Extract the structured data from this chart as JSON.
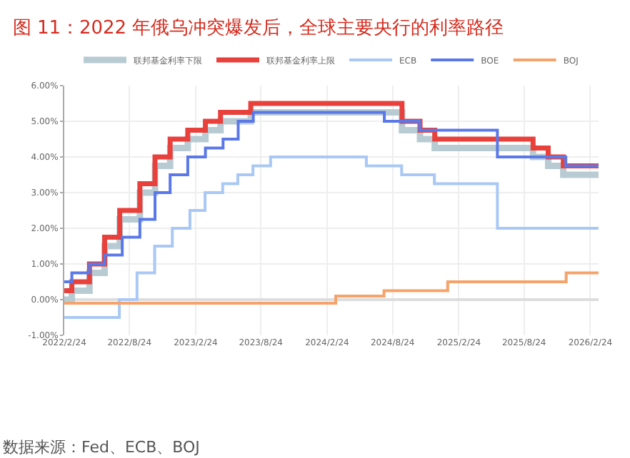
{
  "chart_data": {
    "type": "step",
    "title": "图 11：2022 年俄乌冲突爆发后，全球主要央行的利率路径",
    "series": [
      {
        "name": "联邦基金利率下限",
        "color": "#b8cbd3",
        "x": [
          "2022-02-24",
          "2022-03-17",
          "2022-05-05",
          "2022-06-16",
          "2022-07-28",
          "2022-09-22",
          "2022-11-03",
          "2022-12-15",
          "2023-02-02",
          "2023-03-23",
          "2023-05-04",
          "2023-07-27",
          "2024-09-19",
          "2024-11-08",
          "2024-12-19",
          "2025-09-18",
          "2025-10-30",
          "2025-12-11",
          "2026-03-19"
        ],
        "values": [
          0.0,
          0.25,
          0.75,
          1.5,
          2.25,
          3.0,
          3.75,
          4.25,
          4.5,
          4.75,
          5.0,
          5.25,
          4.75,
          4.5,
          4.25,
          4.0,
          3.75,
          3.5,
          3.5
        ]
      },
      {
        "name": "联邦基金利率上限",
        "color": "#e8413c",
        "x": [
          "2022-02-24",
          "2022-03-17",
          "2022-05-05",
          "2022-06-16",
          "2022-07-28",
          "2022-09-22",
          "2022-11-03",
          "2022-12-15",
          "2023-02-02",
          "2023-03-23",
          "2023-05-04",
          "2023-07-27",
          "2024-09-19",
          "2024-11-08",
          "2024-12-19",
          "2025-09-18",
          "2025-10-30",
          "2025-12-11",
          "2026-03-19"
        ],
        "values": [
          0.25,
          0.5,
          1.0,
          1.75,
          2.5,
          3.25,
          4.0,
          4.5,
          4.75,
          5.0,
          5.25,
          5.5,
          5.0,
          4.75,
          4.5,
          4.25,
          4.0,
          3.75,
          3.75
        ]
      },
      {
        "name": "ECB",
        "color": "#a9c8f5",
        "x": [
          "2022-02-24",
          "2022-07-27",
          "2022-09-14",
          "2022-11-02",
          "2022-12-21",
          "2023-02-08",
          "2023-03-22",
          "2023-05-10",
          "2023-06-21",
          "2023-08-02",
          "2023-09-20",
          "2024-06-12",
          "2024-09-18",
          "2024-12-18",
          "2025-06-11",
          "2026-03-19"
        ],
        "values": [
          -0.5,
          0.0,
          0.75,
          1.5,
          2.0,
          2.5,
          3.0,
          3.25,
          3.5,
          3.75,
          4.0,
          3.75,
          3.5,
          3.25,
          2.0,
          2.0
        ]
      },
      {
        "name": "BOE",
        "color": "#5a78e8",
        "x": [
          "2022-02-24",
          "2022-03-17",
          "2022-05-05",
          "2022-06-16",
          "2022-08-04",
          "2022-09-22",
          "2022-11-03",
          "2022-12-15",
          "2023-02-02",
          "2023-03-23",
          "2023-05-11",
          "2023-06-22",
          "2023-08-03",
          "2024-08-01",
          "2024-11-07",
          "2025-06-11",
          "2025-12-18",
          "2026-03-19"
        ],
        "values": [
          0.5,
          0.75,
          1.0,
          1.25,
          1.75,
          2.25,
          3.0,
          3.5,
          4.0,
          4.25,
          4.5,
          5.0,
          5.25,
          5.0,
          4.75,
          4.0,
          3.75,
          3.75
        ]
      },
      {
        "name": "BOJ",
        "color": "#f5a36b",
        "x": [
          "2022-02-24",
          "2024-03-19",
          "2024-07-31",
          "2025-01-24",
          "2025-12-19",
          "2026-03-19"
        ],
        "values": [
          -0.1,
          0.1,
          0.25,
          0.5,
          0.75,
          0.75
        ]
      }
    ],
    "xlim": [
      "2022-02-24",
      "2026-03-19"
    ],
    "xticks": [
      {
        "value": "2022-02-24",
        "label": "2022/2/24"
      },
      {
        "value": "2022-08-24",
        "label": "2022/8/24"
      },
      {
        "value": "2023-02-24",
        "label": "2023/2/24"
      },
      {
        "value": "2023-08-24",
        "label": "2023/8/24"
      },
      {
        "value": "2024-02-24",
        "label": "2024/2/24"
      },
      {
        "value": "2024-08-24",
        "label": "2024/8/24"
      },
      {
        "value": "2025-02-24",
        "label": "2025/2/24"
      },
      {
        "value": "2025-08-24",
        "label": "2025/8/24"
      },
      {
        "value": "2026-02-24",
        "label": "2026/2/24"
      }
    ],
    "ylim": [
      -1,
      6
    ],
    "yticks": [
      {
        "value": -1,
        "label": "-1.00%"
      },
      {
        "value": 0,
        "label": "0.00%"
      },
      {
        "value": 1,
        "label": "1.00%"
      },
      {
        "value": 2,
        "label": "2.00%"
      },
      {
        "value": 3,
        "label": "3.00%"
      },
      {
        "value": 4,
        "label": "4.00%"
      },
      {
        "value": 5,
        "label": "5.00%"
      },
      {
        "value": 6,
        "label": "6.00%"
      }
    ],
    "grid": true,
    "legend": "top",
    "annotations": [
      "数据来源：Fed、ECB、BOJ"
    ]
  }
}
